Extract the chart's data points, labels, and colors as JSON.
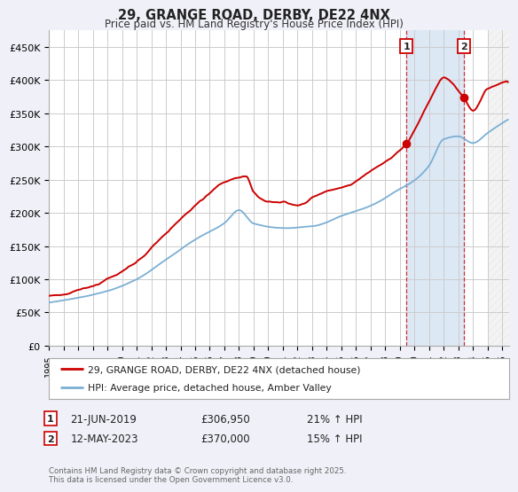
{
  "title": "29, GRANGE ROAD, DERBY, DE22 4NX",
  "subtitle": "Price paid vs. HM Land Registry's House Price Index (HPI)",
  "ylabel_ticks": [
    "£0",
    "£50K",
    "£100K",
    "£150K",
    "£200K",
    "£250K",
    "£300K",
    "£350K",
    "£400K",
    "£450K"
  ],
  "ytick_values": [
    0,
    50000,
    100000,
    150000,
    200000,
    250000,
    300000,
    350000,
    400000,
    450000
  ],
  "ylim": [
    0,
    475000
  ],
  "xlim_start": 1995.0,
  "xlim_end": 2026.5,
  "background_color": "#f0f0f8",
  "plot_bg_color": "#ffffff",
  "grid_color": "#cccccc",
  "red_color": "#cc0000",
  "blue_color": "#7bafd4",
  "shade_color": "#dde8f5",
  "legend_entries": [
    "29, GRANGE ROAD, DERBY, DE22 4NX (detached house)",
    "HPI: Average price, detached house, Amber Valley"
  ],
  "annotation1": {
    "label": "1",
    "date": "21-JUN-2019",
    "price": "£306,950",
    "hpi": "21% ↑ HPI",
    "x": 2019.47
  },
  "annotation2": {
    "label": "2",
    "date": "12-MAY-2023",
    "price": "£370,000",
    "hpi": "15% ↑ HPI",
    "x": 2023.37
  },
  "footer": "Contains HM Land Registry data © Crown copyright and database right 2025.\nThis data is licensed under the Open Government Licence v3.0.",
  "xtick_years": [
    1995,
    1996,
    1997,
    1998,
    1999,
    2000,
    2001,
    2002,
    2003,
    2004,
    2005,
    2006,
    2007,
    2008,
    2009,
    2010,
    2011,
    2012,
    2013,
    2014,
    2015,
    2016,
    2017,
    2018,
    2019,
    2020,
    2021,
    2022,
    2023,
    2024,
    2025,
    2026
  ],
  "sale1_val": 306950,
  "sale2_val": 370000,
  "hatch_start": 2025.0
}
